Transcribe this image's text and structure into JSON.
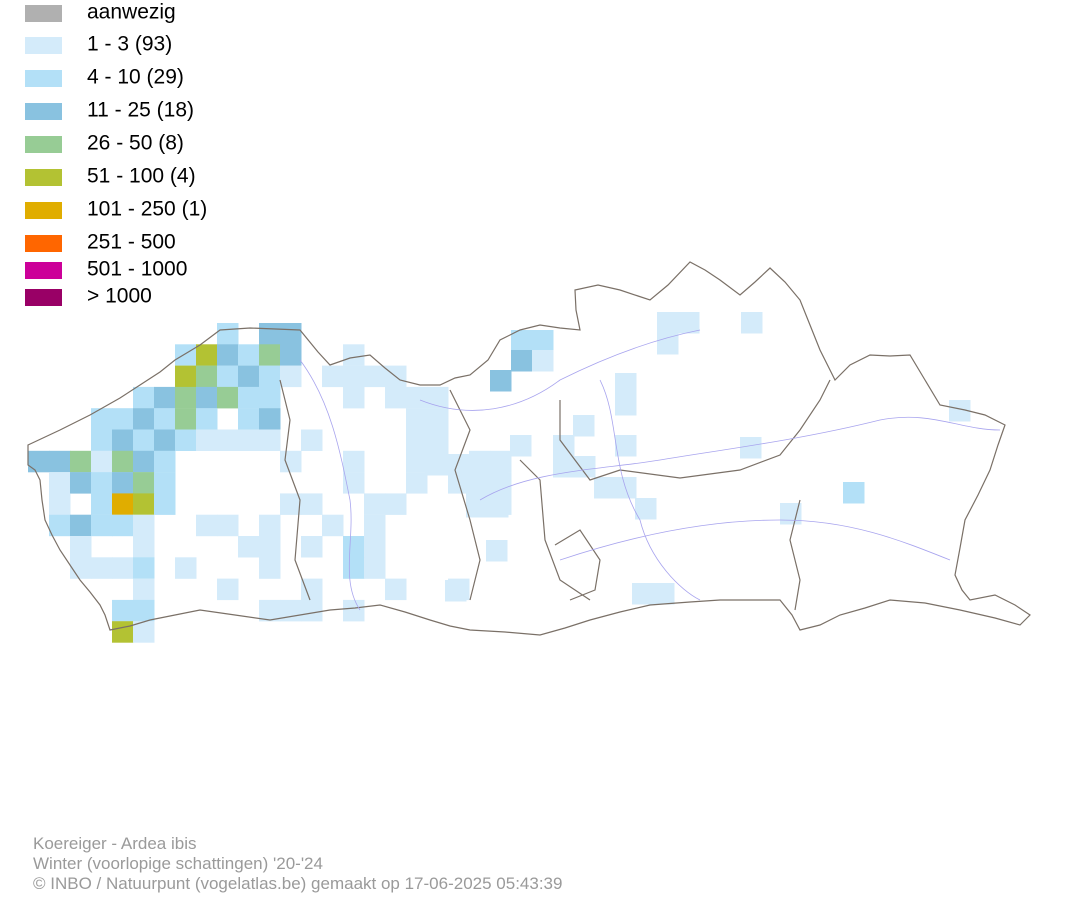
{
  "legend": [
    {
      "label": "aanwezig",
      "color": "#b0b0b0"
    },
    {
      "label": "1 - 3 (93)",
      "color": "#d4ebfa"
    },
    {
      "label": "4 - 10 (29)",
      "color": "#b3e0f7"
    },
    {
      "label": "11 - 25 (18)",
      "color": "#89c2e0"
    },
    {
      "label": "26 - 50 (8)",
      "color": "#97cc95"
    },
    {
      "label": "51 - 100 (4)",
      "color": "#b3c233"
    },
    {
      "label": "101 - 250 (1)",
      "color": "#e0ad00"
    },
    {
      "label": "251 - 500",
      "color": "#ff6600"
    },
    {
      "label": "501 - 1000",
      "color": "#cc0099"
    },
    {
      "label": "> 1000",
      "color": "#990066"
    }
  ],
  "footer": {
    "species": "Koereiger - Ardea ibis",
    "season": "Winter (voorlopige schattingen) '20-'24",
    "credit": "© INBO / Natuurpunt (vogelatlas.be) gemaakt op 17-06-2025 05:43:39"
  }
}
